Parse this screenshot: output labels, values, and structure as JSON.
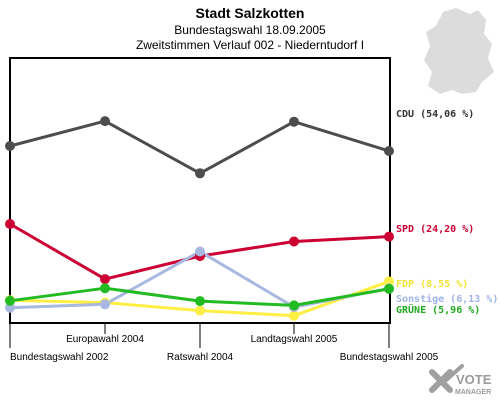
{
  "header": {
    "title": "Stadt Salzkotten",
    "subtitle1": "Bundestagswahl 18.09.2005",
    "subtitle2": "Zweitstimmen Verlauf 002 - Niederntudorf I"
  },
  "logo": {
    "line1": "VOTE",
    "line2": "MANAGER"
  },
  "chart_data": {
    "type": "line",
    "title": "Stadt Salzkotten",
    "categories": [
      "Bundestagswahl 2002",
      "Europawahl 2004",
      "Ratswahl 2004",
      "Landtagswahl 2005",
      "Bundestagswahl 2005"
    ],
    "category_label_rows": [
      "bottom",
      "top",
      "bottom",
      "top",
      "bottom"
    ],
    "ylim": [
      0,
      60
    ],
    "grid": false,
    "series": [
      {
        "name": "CDU",
        "label": "CDU (54,06 %)",
        "color": "#4d4d4d",
        "label_color": "#333333",
        "values": [
          55.8,
          64.5,
          46.3,
          64.3,
          54.06
        ]
      },
      {
        "name": "SPD",
        "label": "SPD (24,20 %)",
        "color": "#cc0033",
        "label_color": "#cc0033",
        "values": [
          28.6,
          9.4,
          17.4,
          22.5,
          24.2
        ]
      },
      {
        "name": "FDP",
        "label": "FDP (8,55 %)",
        "color": "#ffee44",
        "label_color": "#f2e233",
        "values": [
          2.0,
          1.2,
          -1.6,
          -3.4,
          8.55
        ]
      },
      {
        "name": "Sonstige",
        "label": "Sonstige (6,13 %)",
        "color": "#a8b8e0",
        "label_color": "#9fb3e6",
        "values": [
          -0.6,
          0.6,
          19.0,
          -0.4,
          6.13
        ]
      },
      {
        "name": "GRÜNE",
        "label": "GRÜNE (5,96 %)",
        "color": "#22bb22",
        "label_color": "#22aa22",
        "values": [
          1.8,
          6.2,
          1.7,
          0.2,
          5.96
        ]
      }
    ]
  }
}
